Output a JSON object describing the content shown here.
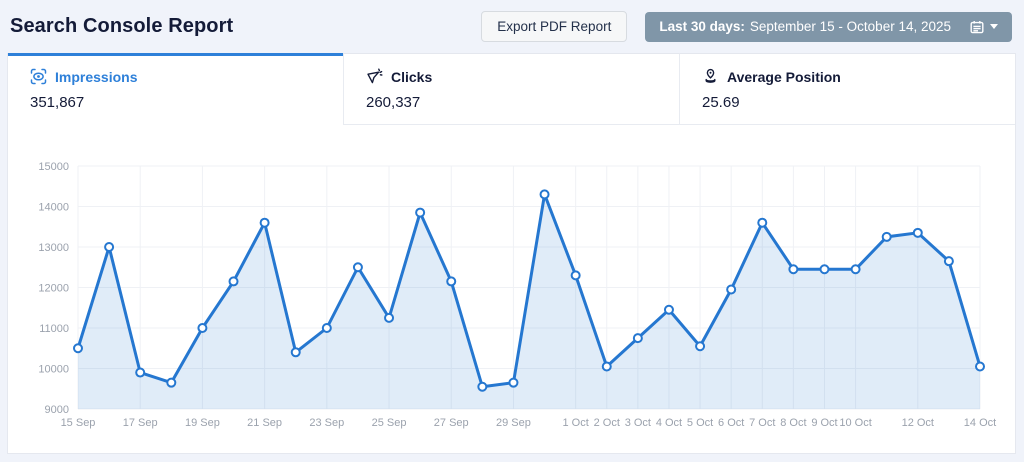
{
  "header": {
    "title": "Search Console Report",
    "export_button_label": "Export PDF Report",
    "date_range": {
      "prefix": "Last 30 days:",
      "range": "September 15 - October 14, 2025",
      "icons": [
        "calendar-icon",
        "caret-down-icon"
      ]
    }
  },
  "tabs": [
    {
      "label": "Impressions",
      "value": "351,867",
      "icon": "impressions-eye-icon",
      "active": true
    },
    {
      "label": "Clicks",
      "value": "260,337",
      "icon": "clicks-cursor-icon",
      "active": false
    },
    {
      "label": "Average Position",
      "value": "25.69",
      "icon": "average-position-pin-icon",
      "active": false
    }
  ],
  "colors": {
    "accent_blue": "#2e80d9",
    "line_blue": "#2577d0",
    "area_fill": "rgba(37,119,208,0.14)",
    "date_button_bg": "#8096a8",
    "page_bg": "#f0f3fa",
    "text_dark": "#141b38",
    "axis_text": "#9ba2ad",
    "gridline": "#eff1f5"
  },
  "chart_data": {
    "type": "line",
    "title": "",
    "xlabel": "",
    "ylabel": "",
    "legend": false,
    "grid": true,
    "ylim": [
      9000,
      15000
    ],
    "y_ticks": [
      9000,
      10000,
      11000,
      12000,
      13000,
      14000,
      15000
    ],
    "x": [
      "15 Sep",
      "16 Sep",
      "17 Sep",
      "18 Sep",
      "19 Sep",
      "20 Sep",
      "21 Sep",
      "22 Sep",
      "23 Sep",
      "24 Sep",
      "25 Sep",
      "26 Sep",
      "27 Sep",
      "28 Sep",
      "29 Sep",
      "30 Sep",
      "1 Oct",
      "2 Oct",
      "3 Oct",
      "4 Oct",
      "5 Oct",
      "6 Oct",
      "7 Oct",
      "8 Oct",
      "9 Oct",
      "10 Oct",
      "11 Oct",
      "12 Oct",
      "13 Oct",
      "14 Oct"
    ],
    "x_tick_indices": [
      0,
      2,
      4,
      6,
      8,
      10,
      12,
      14,
      16,
      17,
      18,
      19,
      20,
      21,
      22,
      23,
      24,
      25,
      27,
      29
    ],
    "x_tick_labels": [
      "15 Sep",
      "17 Sep",
      "19 Sep",
      "21 Sep",
      "23 Sep",
      "25 Sep",
      "27 Sep",
      "29 Sep",
      "1 Oct",
      "2 Oct",
      "3 Oct",
      "4 Oct",
      "5 Oct",
      "6 Oct",
      "7 Oct",
      "8 Oct",
      "9 Oct",
      "10 Oct",
      "12 Oct",
      "14 Oct"
    ],
    "series": [
      {
        "name": "Impressions",
        "values": [
          10500,
          13000,
          9900,
          9650,
          11000,
          12150,
          13600,
          10400,
          11000,
          12500,
          11250,
          13850,
          12150,
          9550,
          9650,
          14300,
          12300,
          10050,
          10750,
          11450,
          10550,
          11950,
          13600,
          12450,
          12450,
          12450,
          13250,
          13350,
          12650,
          10050
        ]
      }
    ]
  }
}
